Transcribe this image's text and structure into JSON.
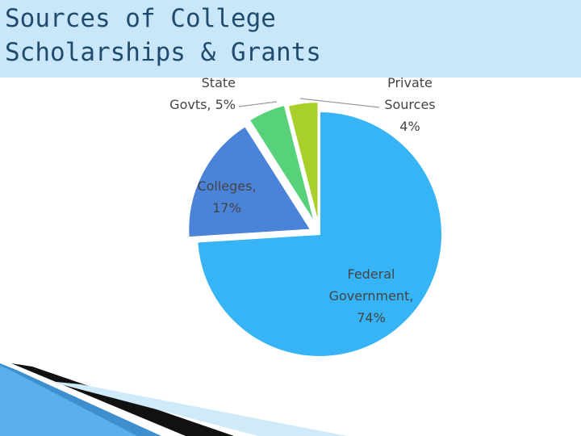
{
  "title": [
    "Sources of College",
    "Scholarships & Grants"
  ],
  "colors": {
    "title_band": "#c9e7f8",
    "title_text": "#1f4b6e"
  },
  "chart_data": {
    "type": "pie",
    "title": "Sources of College Scholarships & Grants",
    "exploded": true,
    "slices": [
      {
        "label": "Federal Government",
        "value": 74,
        "color": "#36b4f6",
        "label_lines": [
          "Federal",
          "Government,",
          "74%"
        ]
      },
      {
        "label": "Colleges",
        "value": 17,
        "color": "#4a83d8",
        "label_lines": [
          "Colleges,",
          "17%"
        ]
      },
      {
        "label": "State Govts",
        "value": 5,
        "color": "#58d27a",
        "label_lines": [
          "State",
          "Govts, 5%"
        ]
      },
      {
        "label": "Private Sources",
        "value": 4,
        "color": "#a8cf2a",
        "label_lines": [
          "Private",
          "Sources",
          "4%"
        ]
      }
    ]
  }
}
